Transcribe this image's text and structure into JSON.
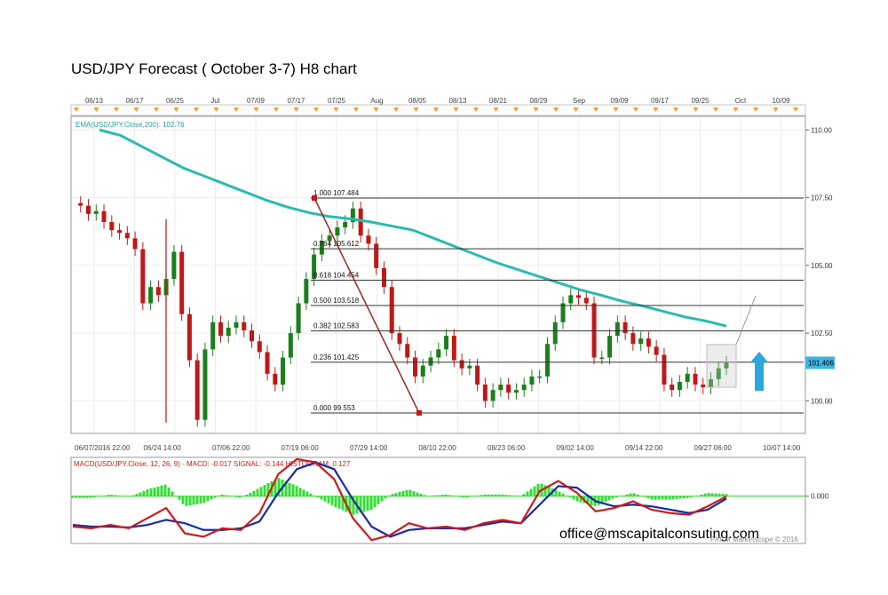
{
  "page": {
    "title": "USD/JPY Forecast ( October 3-7) H8 chart",
    "email": "office@mscapitalconsuting.com",
    "copyright": "FXCM Marketscope © 2016"
  },
  "colors": {
    "candle_up": "#1a7f1a",
    "candle_down": "#c01818",
    "ema": "#2bbbb0",
    "fib": "#333333",
    "macd": "#cc1c1c",
    "signal": "#1a2aa8",
    "histogram": "#33dd33",
    "arrow": "#2aa8de",
    "price_box": "#3db5e6"
  },
  "chart_data": [
    {
      "type": "candlestick",
      "name": "price",
      "ylim": [
        98.8,
        110.5
      ],
      "yticks": [
        "110.00",
        "107.50",
        "105.00",
        "102.50",
        "100.00"
      ],
      "top_dates": [
        "06/13",
        "06/17",
        "06/25",
        "Jul",
        "07/09",
        "07/17",
        "07/25",
        "Aug",
        "08/05",
        "08/13",
        "08/21",
        "08/29",
        "Sep",
        "09/09",
        "09/17",
        "09/25",
        "Oct",
        "10/09"
      ],
      "bottom_dates": [
        "06/07/2016 22:00",
        "06/24 14:00",
        "07/06 22:00",
        "07/19 06:00",
        "07/29 14:00",
        "08/10 22:00",
        "08/23 06:00",
        "09/02 14:00",
        "09/14 22:00",
        "09/27 06:00",
        "10/07 14:00"
      ],
      "indicator_label": "EMA(USD/JPY.Close,200): 102.76",
      "price_line": [
        107.3,
        107.2,
        106.9,
        107.0,
        106.6,
        106.3,
        106.2,
        106.0,
        105.6,
        103.6,
        104.2,
        103.9,
        104.5,
        105.5,
        103.2,
        101.5,
        99.3,
        101.9,
        102.9,
        102.4,
        102.7,
        102.9,
        102.6,
        102.2,
        101.8,
        101.0,
        100.6,
        101.6,
        102.5,
        103.6,
        104.5,
        105.4,
        105.9,
        106.1,
        106.4,
        106.6,
        107.1,
        106.1,
        105.8,
        104.9,
        104.2,
        102.5,
        102.1,
        101.6,
        100.9,
        101.3,
        101.6,
        101.9,
        102.4,
        101.5,
        101.2,
        101.3,
        100.6,
        100.0,
        100.4,
        100.6,
        100.3,
        100.4,
        100.6,
        100.9,
        100.9,
        102.1,
        102.9,
        103.6,
        103.9,
        103.8,
        103.6,
        101.6,
        101.6,
        102.4,
        102.9,
        102.5,
        102.1,
        102.3,
        102.0,
        101.7,
        100.6,
        100.4,
        100.7,
        101.0,
        100.6,
        100.5,
        100.8,
        101.2,
        101.4
      ],
      "ema_line": [
        110.0,
        109.8,
        109.4,
        109.0,
        108.6,
        108.3,
        108.0,
        107.7,
        107.4,
        107.15,
        106.95,
        106.8,
        106.72,
        106.6,
        106.45,
        106.3,
        106.0,
        105.7,
        105.4,
        105.1,
        104.85,
        104.6,
        104.35,
        104.1,
        103.9,
        103.68,
        103.5,
        103.3,
        103.1,
        102.95,
        102.76
      ],
      "current_price": "101.406",
      "fibonacci": [
        {
          "label": "1.000 107.484",
          "value": 107.484
        },
        {
          "label": "0.764 105.612",
          "value": 105.612
        },
        {
          "label": "0.618 104.454",
          "value": 104.454
        },
        {
          "label": "0.500 103.518",
          "value": 103.518
        },
        {
          "label": "0.382 102.583",
          "value": 102.583
        },
        {
          "label": "0.236 101.425",
          "value": 101.425
        },
        {
          "label": "0.000 99.553",
          "value": 99.553
        }
      ]
    },
    {
      "type": "line",
      "name": "macd-panel",
      "label": "MACD(USD/JPY.Close, 12, 26, 9) - MACD: -0.017 SIGNAL: -0.144 HISTOGRAM: 0.127",
      "ylim": [
        -2.8,
        2.3
      ],
      "yticks": [
        "0.000"
      ],
      "series": [
        {
          "name": "MACD",
          "values": [
            -1.8,
            -1.9,
            -1.7,
            -1.9,
            -1.3,
            -0.7,
            -2.2,
            -2.4,
            -1.9,
            -2.0,
            -1.0,
            1.3,
            2.2,
            2.0,
            1.0,
            -1.3,
            -2.6,
            -2.3,
            -1.6,
            -1.9,
            -1.8,
            -2.0,
            -1.6,
            -1.4,
            -1.6,
            0.3,
            0.9,
            0.2,
            -0.9,
            -0.7,
            -0.3,
            -0.8,
            -1.0,
            -1.1,
            -0.6,
            -0.02
          ]
        },
        {
          "name": "SIGNAL",
          "values": [
            -1.7,
            -1.8,
            -1.8,
            -1.85,
            -1.7,
            -1.4,
            -1.6,
            -2.0,
            -2.0,
            -1.9,
            -1.5,
            0.2,
            1.6,
            2.0,
            1.6,
            -0.2,
            -1.8,
            -2.4,
            -2.0,
            -1.9,
            -1.9,
            -1.9,
            -1.7,
            -1.5,
            -1.6,
            -0.5,
            0.6,
            0.5,
            -0.3,
            -0.6,
            -0.5,
            -0.6,
            -0.8,
            -1.0,
            -0.8,
            -0.14
          ]
        },
        {
          "name": "HISTOGRAM",
          "values": [
            -0.1,
            -0.1,
            0.1,
            -0.05,
            0.4,
            0.7,
            -0.6,
            -0.4,
            0.1,
            -0.1,
            0.5,
            1.1,
            0.6,
            0.0,
            -0.6,
            -1.1,
            -0.8,
            0.1,
            0.4,
            0.0,
            0.1,
            -0.1,
            0.1,
            0.1,
            0.0,
            0.8,
            0.3,
            -0.3,
            -0.6,
            -0.1,
            0.2,
            -0.2,
            -0.2,
            -0.1,
            0.2,
            0.127
          ]
        }
      ]
    }
  ]
}
